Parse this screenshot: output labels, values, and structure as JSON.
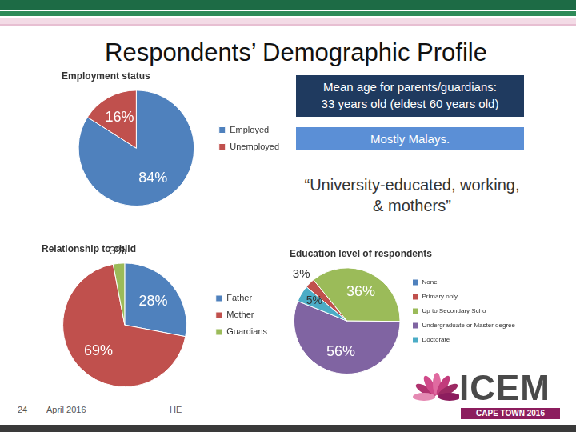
{
  "slide": {
    "title": "Respondents’ Demographic Profile",
    "info_box": [
      "Mean age for parents/guardians:",
      "33 years old (eldest 60 years old)"
    ],
    "ethnicity_box": "Mostly Malays.",
    "quote": "“University-educated, working, & mothers”",
    "footer": {
      "page": "24",
      "date": "April 2016",
      "author": "HE"
    },
    "logo": {
      "name": "ICEM",
      "subtitle": "CAPE TOWN 2016"
    }
  },
  "chart_data": [
    {
      "type": "pie",
      "title": "Employment status",
      "categories": [
        "Employed",
        "Unemployed"
      ],
      "values": [
        84,
        16
      ],
      "value_labels": [
        "84%",
        "16%"
      ],
      "colors": [
        "#4f81bd",
        "#c0504d"
      ],
      "legend": "right",
      "data_labels": true
    },
    {
      "type": "pie",
      "title": "Relationship to child",
      "categories": [
        "Father",
        "Mother",
        "Guardians"
      ],
      "values": [
        28,
        69,
        3
      ],
      "value_labels": [
        "28%",
        "69%",
        "3%"
      ],
      "colors": [
        "#4f81bd",
        "#c0504d",
        "#9bbb59"
      ],
      "legend": "right",
      "data_labels": true
    },
    {
      "type": "pie",
      "title": "Education level of respondents",
      "categories": [
        "None",
        "Primary only",
        "Up to Secondary Scho",
        "Undergraduate or Master degree",
        "Doctorate"
      ],
      "values": [
        0,
        3,
        36,
        56,
        5
      ],
      "value_labels": [
        null,
        "3%",
        "36%",
        "56%",
        "5%"
      ],
      "colors": [
        "#4f81bd",
        "#c0504d",
        "#9bbb59",
        "#8064a2",
        "#4bacc6"
      ],
      "legend": "right",
      "data_labels": true
    }
  ]
}
